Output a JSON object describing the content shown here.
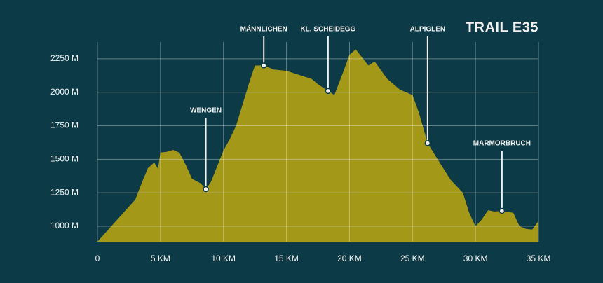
{
  "chart_data": {
    "type": "area",
    "title": "TRAIL E35",
    "x": [
      0,
      1,
      2,
      3,
      3.5,
      4,
      4.5,
      4.8,
      5,
      5.5,
      6,
      6.5,
      7,
      7.5,
      8.2,
      8.6,
      9,
      10,
      10.5,
      11,
      12,
      12.5,
      13.2,
      14,
      15,
      16,
      17,
      17.5,
      18.3,
      18.8,
      19.5,
      20,
      20.5,
      21,
      21.5,
      22,
      23,
      24,
      25,
      25.5,
      26.2,
      27,
      28,
      29,
      29.5,
      30,
      30.5,
      31,
      31.5,
      32.1,
      33,
      33.5,
      34,
      34.5,
      35
    ],
    "values": [
      885,
      990,
      1094,
      1199,
      1320,
      1434,
      1476,
      1430,
      1550,
      1555,
      1570,
      1550,
      1460,
      1355,
      1320,
      1277,
      1330,
      1565,
      1650,
      1750,
      2060,
      2200,
      2200,
      2170,
      2160,
      2130,
      2100,
      2060,
      2010,
      1980,
      2150,
      2280,
      2320,
      2260,
      2200,
      2230,
      2100,
      2020,
      1980,
      1850,
      1620,
      1500,
      1350,
      1250,
      1100,
      1000,
      1050,
      1120,
      1110,
      1115,
      1100,
      1000,
      980,
      975,
      1040
    ],
    "color": "#a39818",
    "xlim": [
      0,
      35
    ],
    "xticks": [
      0,
      {
        "value": 5,
        "label": "5 KM"
      },
      {
        "value": 10,
        "label": "10 KM"
      },
      {
        "value": 15,
        "label": "15 KM"
      },
      {
        "value": 20,
        "label": "20 KM"
      },
      {
        "value": 25,
        "label": "25 KM"
      },
      {
        "value": 30,
        "label": "30 KM"
      },
      {
        "value": 35,
        "label": "35 KM"
      }
    ],
    "ylim": [
      885,
      2375
    ],
    "yticks": [
      {
        "value": 1000,
        "label": "1000 M"
      },
      {
        "value": 1250,
        "label": "1250 M"
      },
      {
        "value": 1500,
        "label": "1500 M"
      },
      {
        "value": 1750,
        "label": "1750 M"
      },
      {
        "value": 2000,
        "label": "2000 M"
      },
      {
        "value": 2250,
        "label": "2250 M"
      }
    ],
    "grid": true,
    "markers": [
      {
        "label": "WENGEN",
        "x": 8.6,
        "y": 1277
      },
      {
        "label": "MÄNNLICHEN",
        "x": 13.2,
        "y": 2200
      },
      {
        "label": "KL. SCHEIDEGG",
        "x": 18.3,
        "y": 2010
      },
      {
        "label": "ALPIGLEN",
        "x": 26.2,
        "y": 1620
      },
      {
        "label": "MARMORBRUCH",
        "x": 32.1,
        "y": 1115
      }
    ]
  }
}
